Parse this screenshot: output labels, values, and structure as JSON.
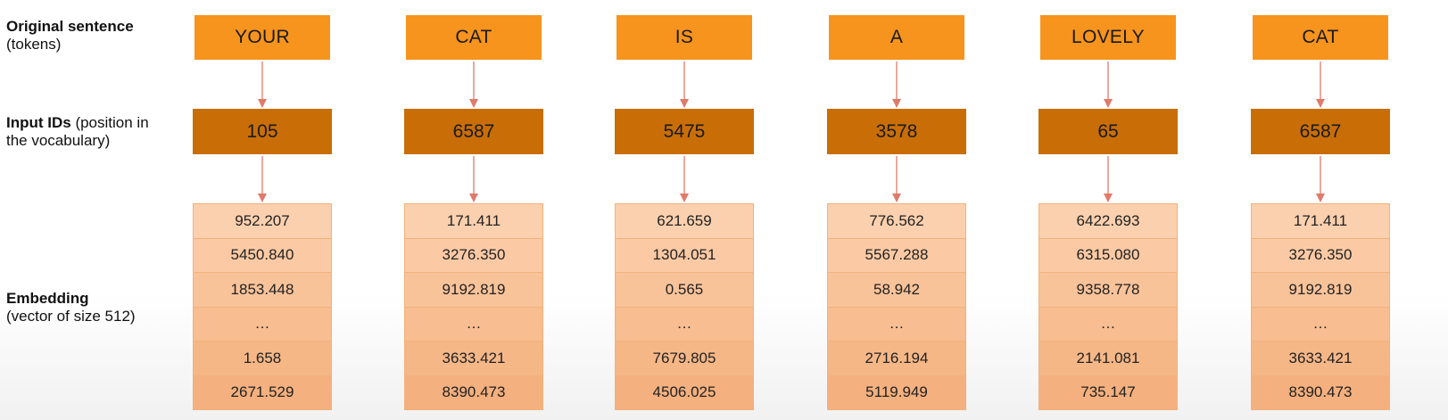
{
  "labels": {
    "tokens_title": "Original sentence",
    "tokens_sub": "(tokens)",
    "ids_title": "Input IDs",
    "ids_sub_line1": " (position in",
    "ids_sub_line2": "the vocabulary)",
    "emb_title": "Embedding",
    "emb_sub": "(vector of size 512)"
  },
  "columns": [
    {
      "token": "YOUR",
      "id": "105",
      "embedding": [
        "952.207",
        "5450.840",
        "1853.448",
        "…",
        "1.658",
        "2671.529"
      ]
    },
    {
      "token": "CAT",
      "id": "6587",
      "embedding": [
        "171.411",
        "3276.350",
        "9192.819",
        "…",
        "3633.421",
        "8390.473"
      ]
    },
    {
      "token": "IS",
      "id": "5475",
      "embedding": [
        "621.659",
        "1304.051",
        "0.565",
        "…",
        "7679.805",
        "4506.025"
      ]
    },
    {
      "token": "A",
      "id": "3578",
      "embedding": [
        "776.562",
        "5567.288",
        "58.942",
        "…",
        "2716.194",
        "5119.949"
      ]
    },
    {
      "token": "LOVELY",
      "id": "65",
      "embedding": [
        "6422.693",
        "6315.080",
        "9358.778",
        "…",
        "2141.081",
        "735.147"
      ]
    },
    {
      "token": "CAT",
      "id": "6587",
      "embedding": [
        "171.411",
        "3276.350",
        "9192.819",
        "…",
        "3633.421",
        "8390.473"
      ]
    }
  ],
  "colors": {
    "token_box": "#f7941d",
    "id_box": "#c96e06",
    "embedding_cell": "#fbc59d",
    "arrow": "#e07a6a"
  }
}
